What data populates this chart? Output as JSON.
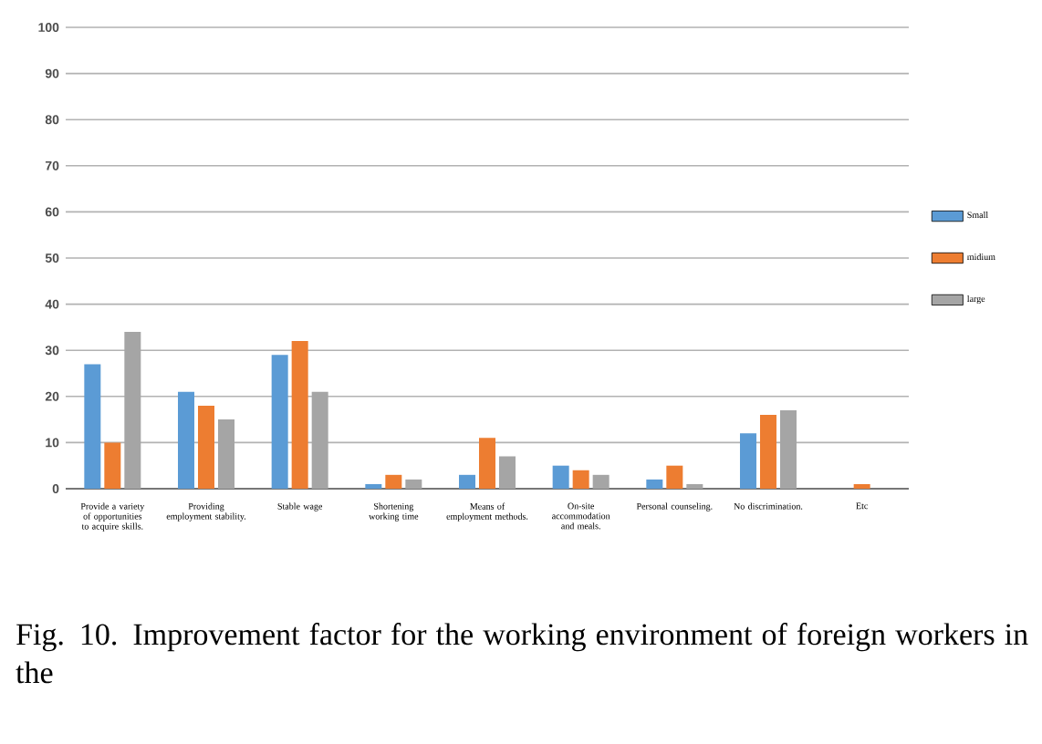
{
  "chart_data": {
    "type": "bar",
    "title": "Fig. 10. Improvement factor for the working environment of foreign workers in the",
    "categories": [
      "Provide a variety of opportunities to acquire skills.",
      "Providing employment stability.",
      "Stable wage",
      "Shortening working time",
      "Means of employment methods.",
      "On-site accommodation and meals.",
      "Personal counseling.",
      "No discrimination.",
      "Etc"
    ],
    "series": [
      {
        "name": "Small",
        "color": "#5b9bd5",
        "values": [
          27,
          21,
          29,
          1,
          3,
          5,
          2,
          12,
          0
        ]
      },
      {
        "name": "midium",
        "color": "#ed7d31",
        "values": [
          10,
          18,
          32,
          3,
          11,
          4,
          5,
          16,
          1
        ]
      },
      {
        "name": "large",
        "color": "#a5a5a5",
        "values": [
          34,
          15,
          21,
          2,
          7,
          3,
          1,
          17,
          0
        ]
      }
    ],
    "ylim": [
      0,
      100
    ],
    "yticks": [
      0,
      10,
      20,
      30,
      40,
      50,
      60,
      70,
      80,
      90,
      100
    ],
    "grid": "y",
    "legend": "right"
  }
}
